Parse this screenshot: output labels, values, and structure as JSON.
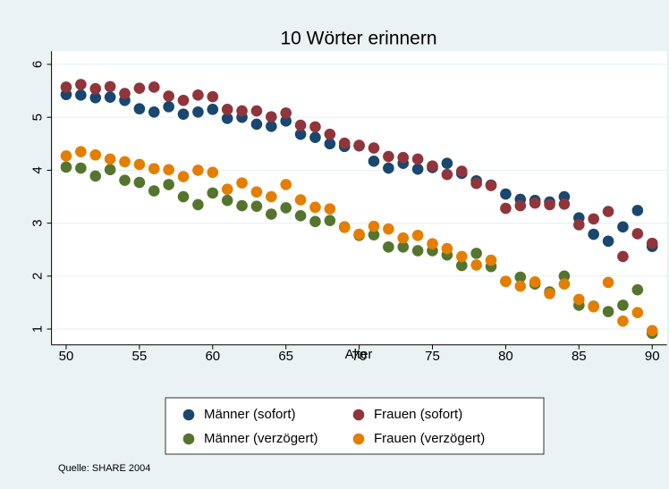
{
  "chart_data": {
    "type": "scatter",
    "title": "10 Wörter erinnern",
    "xlabel": "Alter",
    "note": "Quelle: SHARE 2004",
    "x": [
      50,
      51,
      52,
      53,
      54,
      55,
      56,
      57,
      58,
      59,
      60,
      61,
      62,
      63,
      64,
      65,
      66,
      67,
      68,
      69,
      70,
      71,
      72,
      73,
      74,
      75,
      76,
      77,
      78,
      79,
      80,
      81,
      82,
      83,
      84,
      85,
      86,
      87,
      88,
      89,
      90
    ],
    "series": [
      {
        "name": "Männer (sofort)",
        "color": "#1a476f",
        "values": [
          5.43,
          5.42,
          5.37,
          5.38,
          5.32,
          5.16,
          5.1,
          5.2,
          5.06,
          5.1,
          5.15,
          4.98,
          5.0,
          4.87,
          4.83,
          4.93,
          4.68,
          4.62,
          4.5,
          4.45,
          4.46,
          4.17,
          4.04,
          4.13,
          4.02,
          4.05,
          4.13,
          3.94,
          3.8,
          3.72,
          3.55,
          3.45,
          3.43,
          3.4,
          3.5,
          3.1,
          2.79,
          2.66,
          2.93,
          3.24,
          2.56
        ]
      },
      {
        "name": "Frauen (sofort)",
        "color": "#90353b",
        "values": [
          5.57,
          5.62,
          5.54,
          5.58,
          5.45,
          5.55,
          5.57,
          5.4,
          5.32,
          5.42,
          5.39,
          5.15,
          5.12,
          5.12,
          5.01,
          5.08,
          4.85,
          4.82,
          4.68,
          4.51,
          4.47,
          4.42,
          4.26,
          4.24,
          4.21,
          4.08,
          3.92,
          3.98,
          3.75,
          3.71,
          3.28,
          3.33,
          3.38,
          3.35,
          3.36,
          2.97,
          3.08,
          3.22,
          2.37,
          2.8,
          2.62
        ]
      },
      {
        "name": "Männer (verzögert)",
        "color": "#55752f",
        "values": [
          4.06,
          4.04,
          3.89,
          4.01,
          3.81,
          3.77,
          3.61,
          3.73,
          3.5,
          3.35,
          3.57,
          3.43,
          3.33,
          3.32,
          3.17,
          3.29,
          3.14,
          3.03,
          3.05,
          2.93,
          2.77,
          2.78,
          2.55,
          2.55,
          2.48,
          2.48,
          2.4,
          2.2,
          2.43,
          2.18,
          1.9,
          1.98,
          1.85,
          1.7,
          2.0,
          1.45,
          1.43,
          1.33,
          1.45,
          1.74,
          0.92
        ]
      },
      {
        "name": "Frauen (verzögert)",
        "color": "#e37e00",
        "values": [
          4.27,
          4.35,
          4.29,
          4.21,
          4.16,
          4.11,
          4.03,
          4.01,
          3.88,
          4.0,
          3.96,
          3.64,
          3.76,
          3.59,
          3.5,
          3.73,
          3.44,
          3.3,
          3.27,
          2.92,
          2.79,
          2.94,
          2.89,
          2.72,
          2.77,
          2.61,
          2.52,
          2.37,
          2.21,
          2.3,
          1.9,
          1.81,
          1.89,
          1.67,
          1.85,
          1.56,
          1.42,
          1.88,
          1.15,
          1.31,
          0.97
        ]
      }
    ],
    "xlim": [
      49,
      91
    ],
    "xticks": [
      50,
      55,
      60,
      65,
      70,
      75,
      80,
      85,
      90
    ],
    "ylim": [
      0.7,
      6.25
    ],
    "yticks": [
      1,
      2,
      3,
      4,
      5,
      6
    ],
    "grid": true
  }
}
